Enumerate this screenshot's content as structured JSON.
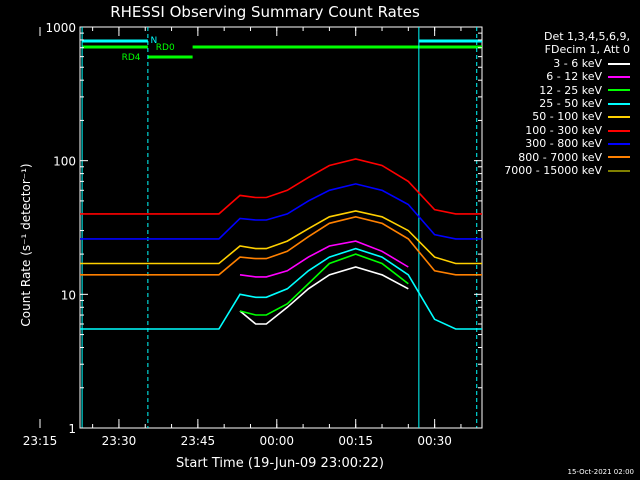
{
  "chart_data": {
    "type": "line",
    "title": "RHESSI Observing Summary Count Rates",
    "xlabel": "Start Time (19-Jun-09 23:00:22)",
    "ylabel": "Count Rate (s⁻¹ detector⁻¹)",
    "y_scale": "log",
    "ylim": [
      1,
      1000
    ],
    "xlim_minutes": [
      22.6,
      99
    ],
    "x_ticks": [
      {
        "label": "23:15",
        "minute": 15
      },
      {
        "label": "23:30",
        "minute": 30
      },
      {
        "label": "23:45",
        "minute": 45
      },
      {
        "label": "00:00",
        "minute": 60
      },
      {
        "label": "00:15",
        "minute": 75
      },
      {
        "label": "00:30",
        "minute": 90
      }
    ],
    "y_ticks": [
      {
        "label": "1",
        "value": 1
      },
      {
        "label": "10",
        "value": 10
      },
      {
        "label": "100",
        "value": 100
      },
      {
        "label": "1000",
        "value": 1000
      }
    ],
    "legend_header": [
      "Det 1,3,4,5,6,9,",
      "FDecim 1, Att 0"
    ],
    "series": [
      {
        "name": "3 - 6 keV",
        "color": "#ffffff",
        "x": [
          22.6,
          30,
          39,
          44,
          49,
          53,
          56,
          58,
          62,
          66,
          70,
          75,
          80,
          85,
          90,
          94,
          97,
          99
        ],
        "y": [
          null,
          null,
          null,
          null,
          null,
          7.5,
          6,
          6,
          8,
          11,
          14,
          16,
          14,
          11,
          null,
          null,
          null,
          null
        ]
      },
      {
        "name": "6 - 12 keV",
        "color": "#ff00ff",
        "x": [
          22.6,
          30,
          39,
          44,
          49,
          53,
          56,
          58,
          62,
          66,
          70,
          75,
          80,
          85,
          90,
          94,
          97,
          99
        ],
        "y": [
          null,
          null,
          null,
          null,
          null,
          14,
          13.5,
          13.5,
          15,
          19,
          23,
          25,
          21,
          16,
          null,
          null,
          null,
          null
        ]
      },
      {
        "name": "12 - 25 keV",
        "color": "#00ff00",
        "x": [
          22.6,
          30,
          39,
          44,
          49,
          53,
          56,
          58,
          62,
          66,
          70,
          75,
          80,
          85,
          90,
          94,
          97,
          99
        ],
        "y": [
          null,
          null,
          null,
          null,
          null,
          7.5,
          7,
          7,
          8.5,
          12,
          17,
          20,
          17,
          12,
          null,
          null,
          null,
          null
        ]
      },
      {
        "name": "25 - 50 keV",
        "color": "#00ffff",
        "x": [
          22.6,
          30,
          39,
          44,
          49,
          53,
          56,
          58,
          62,
          66,
          70,
          75,
          80,
          85,
          90,
          94,
          97,
          99
        ],
        "y": [
          5.5,
          5.5,
          5.5,
          5.5,
          5.5,
          10,
          9.5,
          9.5,
          11,
          15,
          19,
          22,
          19,
          14,
          6.5,
          5.5,
          5.5,
          5.5
        ]
      },
      {
        "name": "50 - 100 keV",
        "color": "#ffd000",
        "x": [
          22.6,
          30,
          39,
          44,
          49,
          53,
          56,
          58,
          62,
          66,
          70,
          75,
          80,
          85,
          90,
          94,
          97,
          99
        ],
        "y": [
          17,
          17,
          17,
          17,
          17,
          23,
          22,
          22,
          25,
          31,
          38,
          42,
          38,
          30,
          19,
          17,
          17,
          17
        ]
      },
      {
        "name": "100 - 300 keV",
        "color": "#ff0000",
        "x": [
          22.6,
          30,
          39,
          44,
          49,
          53,
          56,
          58,
          62,
          66,
          70,
          75,
          80,
          85,
          90,
          94,
          97,
          99
        ],
        "y": [
          40,
          40,
          40,
          40,
          40,
          55,
          53,
          53,
          60,
          75,
          92,
          103,
          92,
          70,
          43,
          40,
          40,
          40
        ]
      },
      {
        "name": "300 - 800 keV",
        "color": "#0000ff",
        "x": [
          22.6,
          30,
          39,
          44,
          49,
          53,
          56,
          58,
          62,
          66,
          70,
          75,
          80,
          85,
          90,
          94,
          97,
          99
        ],
        "y": [
          26,
          26,
          26,
          26,
          26,
          37,
          36,
          36,
          40,
          50,
          60,
          67,
          60,
          47,
          28,
          26,
          26,
          26
        ]
      },
      {
        "name": "800 - 7000 keV",
        "color": "#ff8000",
        "x": [
          22.6,
          30,
          39,
          44,
          49,
          53,
          56,
          58,
          62,
          66,
          70,
          75,
          80,
          85,
          90,
          94,
          97,
          99
        ],
        "y": [
          14,
          14,
          14,
          14,
          14,
          19,
          18.5,
          18.5,
          21,
          27,
          34,
          38,
          34,
          26,
          15,
          14,
          14,
          14
        ]
      },
      {
        "name": "7000 - 15000 keV",
        "color": "#808000",
        "x": [
          22.6,
          30,
          39,
          44,
          49,
          53,
          56,
          58,
          62,
          66,
          70,
          75,
          80,
          85,
          90,
          94,
          97,
          99
        ],
        "y": [
          null,
          null,
          null,
          null,
          null,
          null,
          null,
          null,
          null,
          null,
          null,
          null,
          null,
          null,
          null,
          null,
          null,
          null
        ]
      }
    ],
    "annotations": [
      {
        "label": "N",
        "color": "#00ffff"
      },
      {
        "label": "RD0",
        "color": "#00ff00"
      },
      {
        "label": "RD4",
        "color": "#00ff00"
      }
    ]
  },
  "legend": {
    "items": [
      {
        "label": "3 - 6 keV",
        "color": "#ffffff"
      },
      {
        "label": "6 - 12 keV",
        "color": "#ff00ff"
      },
      {
        "label": "12 - 25 keV",
        "color": "#00ff00"
      },
      {
        "label": "25 - 50 keV",
        "color": "#00ffff"
      },
      {
        "label": "50 - 100 keV",
        "color": "#ffd000"
      },
      {
        "label": "100 - 300 keV",
        "color": "#ff0000"
      },
      {
        "label": "300 - 800 keV",
        "color": "#0000ff"
      },
      {
        "label": "800 - 7000 keV",
        "color": "#ff8000"
      },
      {
        "label": "7000 - 15000 keV",
        "color": "#808000"
      }
    ]
  },
  "footer": "15-Oct-2021 02:00"
}
